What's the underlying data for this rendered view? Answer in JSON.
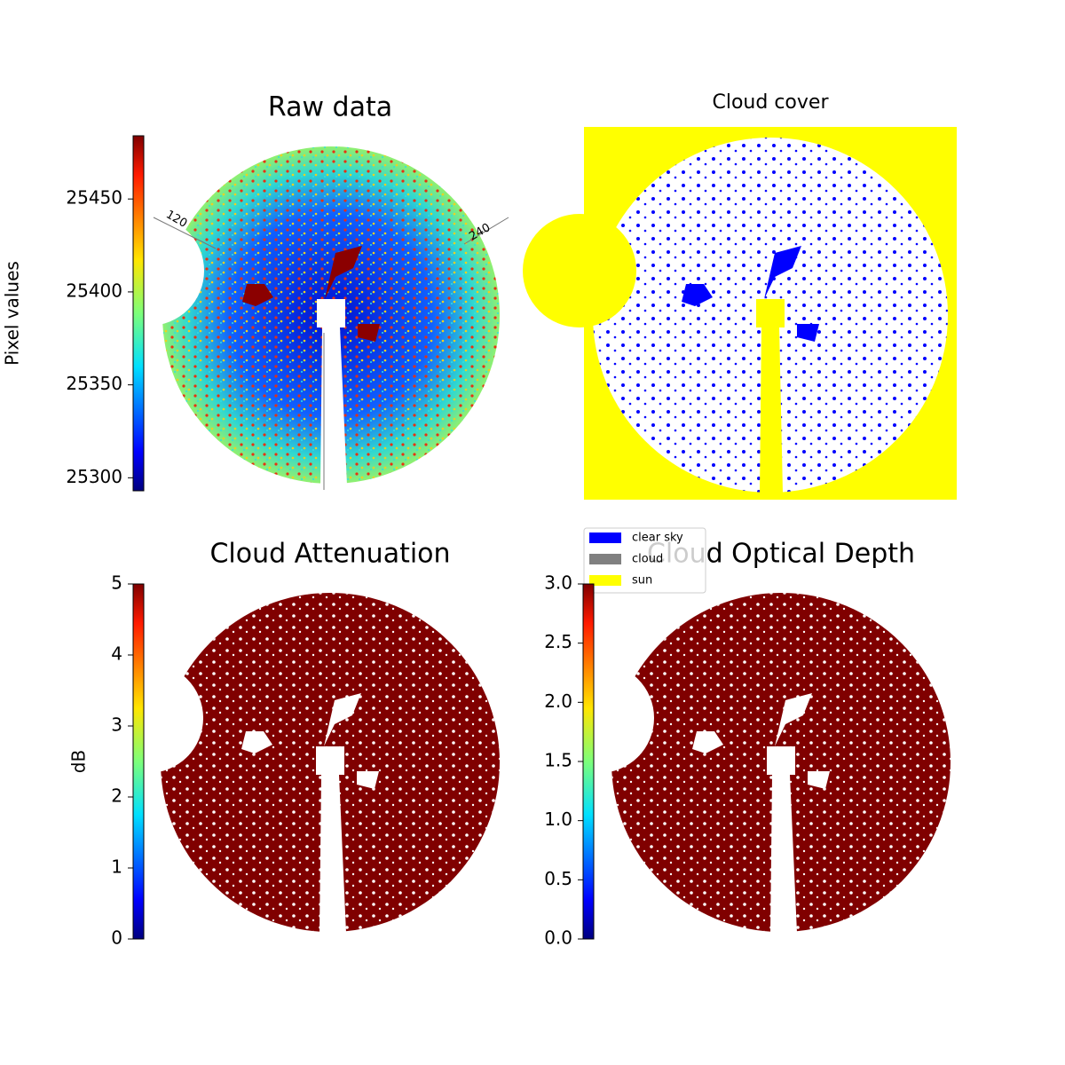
{
  "chart_data": [
    {
      "type": "image",
      "title": "Raw data",
      "colormap": "jet",
      "colorbar": {
        "label": "Pixel values",
        "ylim": [
          25293,
          25484
        ],
        "yticks": [
          25300,
          25350,
          25400,
          25450
        ]
      },
      "annotations": [
        "120",
        "240"
      ]
    },
    {
      "type": "image",
      "title": "Cloud cover",
      "legend": [
        {
          "name": "clear sky",
          "color": "#0000ff"
        },
        {
          "name": "cloud",
          "color": "#808080"
        },
        {
          "name": "sun",
          "color": "#ffff00"
        }
      ]
    },
    {
      "type": "image",
      "title": "Cloud Attenuation",
      "colormap": "jet",
      "colorbar": {
        "label": "dB",
        "ylim": [
          0,
          5
        ],
        "yticks": [
          0,
          1,
          2,
          3,
          4,
          5
        ]
      }
    },
    {
      "type": "image",
      "title": "Cloud Optical Depth",
      "colormap": "jet",
      "colorbar": {
        "ylim": [
          0,
          3
        ],
        "yticks": [
          {
            "value": 0,
            "label": "0.0"
          },
          0.5,
          {
            "value": 1,
            "label": "1.0"
          },
          1.5,
          {
            "value": 2,
            "label": "2.0"
          },
          2.5,
          {
            "value": 3,
            "label": "3.0"
          }
        ]
      }
    }
  ]
}
